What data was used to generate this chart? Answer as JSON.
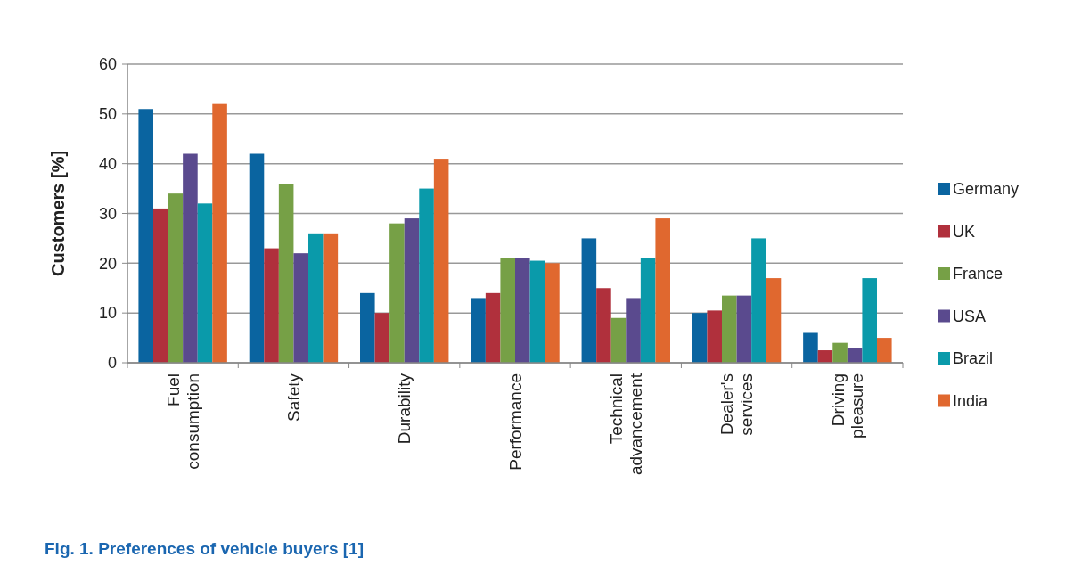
{
  "chart_data": {
    "type": "bar",
    "ylabel": "Customers [%]",
    "categories": [
      "Fuel consumption",
      "Safety",
      "Durability",
      "Performance",
      "Technical advancement",
      "Dealer's services",
      "Driving pleasure"
    ],
    "series": [
      {
        "name": "Germany",
        "color": "#0a64a0",
        "values": [
          51,
          42,
          14,
          13,
          25,
          10,
          6
        ]
      },
      {
        "name": "UK",
        "color": "#b0303c",
        "values": [
          31,
          23,
          10,
          14,
          15,
          10.5,
          2.5
        ]
      },
      {
        "name": "France",
        "color": "#76a046",
        "values": [
          34,
          36,
          28,
          21,
          9,
          13.5,
          4
        ]
      },
      {
        "name": "USA",
        "color": "#5a4a8e",
        "values": [
          42,
          22,
          29,
          21,
          13,
          13.5,
          3
        ]
      },
      {
        "name": "Brazil",
        "color": "#0a9aaa",
        "values": [
          32,
          26,
          35,
          20.5,
          21,
          25,
          17
        ]
      },
      {
        "name": "India",
        "color": "#e0682f",
        "values": [
          52,
          26,
          41,
          20,
          29,
          17,
          5
        ]
      }
    ],
    "ylim": [
      0,
      60
    ],
    "yticks": [
      0,
      10,
      20,
      30,
      40,
      50,
      60
    ],
    "grid": "y",
    "legend": "right",
    "annotations": [
      "Fig. 1. Preferences of vehicle buyers [1]"
    ]
  }
}
